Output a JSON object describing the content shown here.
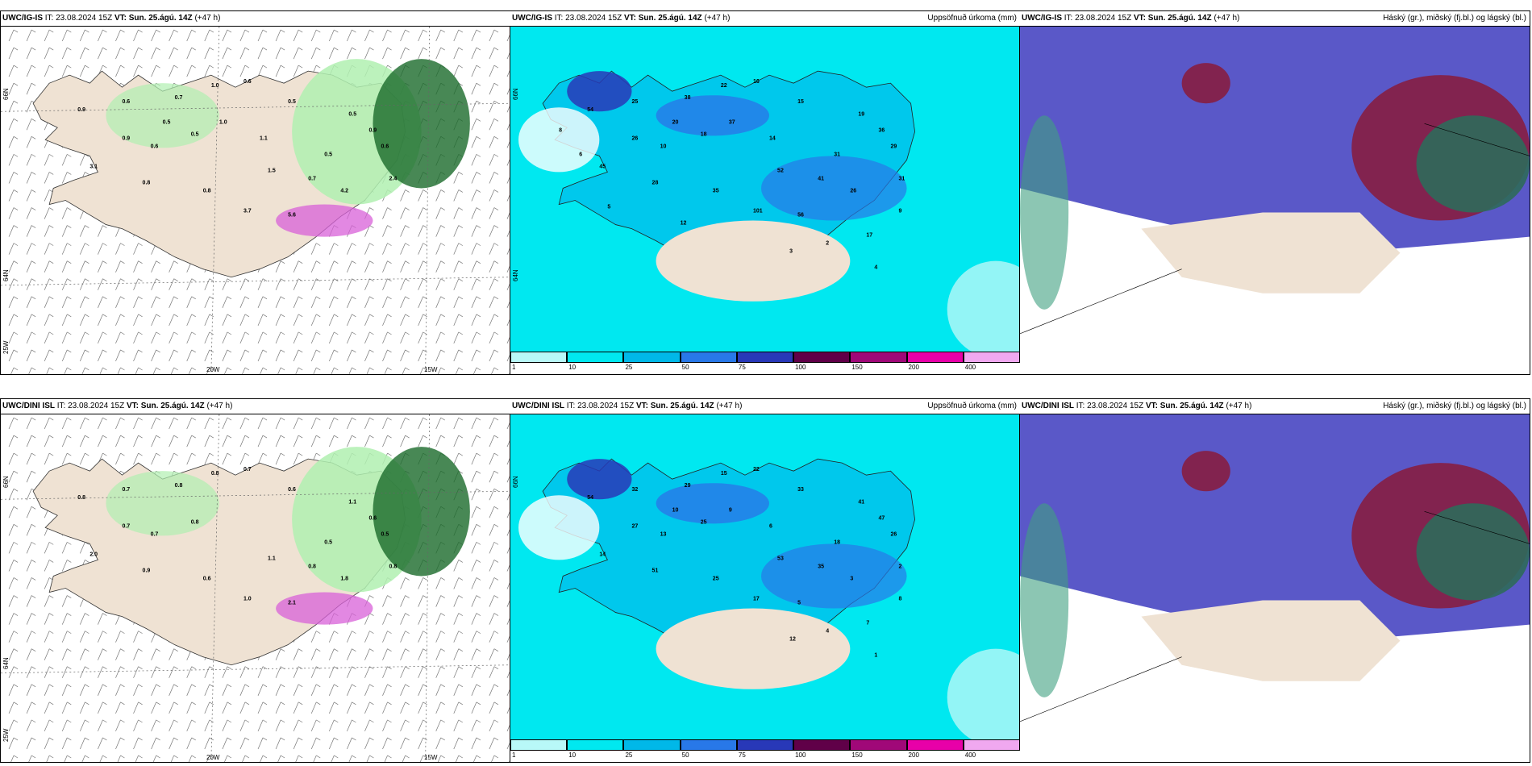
{
  "panels": [
    {
      "id": "top-left",
      "model": "UWC/IG-IS",
      "init": "IT: 23.08.2024 15Z",
      "valid_label": "VT:",
      "valid": "Sun. 25.ágú. 14Z",
      "lead": "(+47 h)",
      "right_title": "",
      "axis_labels": {
        "lon1": "20W",
        "lon2": "15W",
        "lat1": "66N",
        "lat2": "64N",
        "lat3": "25W"
      },
      "values": [
        "0.9",
        "0.6",
        "0.7",
        "0.5",
        "0.9",
        "0.6",
        "1.0",
        "0.6",
        "0.5",
        "0.5",
        "0.9",
        "0.5",
        "0.6",
        "1.5",
        "0.7",
        "0.8",
        "0.8",
        "3.1",
        "3.7",
        "5.6",
        "4.2",
        "2.4",
        "1.0",
        "0.5",
        "1.1"
      ]
    },
    {
      "id": "top-mid",
      "model": "UWC/IG-IS",
      "init": "IT: 23.08.2024 15Z",
      "valid_label": "VT:",
      "valid": "Sun. 25.ágú. 14Z",
      "lead": "(+47 h)",
      "right_title": "Uppsöfnuð úrkoma (mm)",
      "axis_labels": {
        "lat1": "66N",
        "lat2": "64N"
      },
      "values": [
        "54",
        "25",
        "38",
        "18",
        "26",
        "10",
        "22",
        "16",
        "15",
        "19",
        "36",
        "31",
        "29",
        "52",
        "41",
        "35",
        "28",
        "45",
        "101",
        "56",
        "26",
        "31",
        "37",
        "20",
        "14",
        "17",
        "2",
        "3",
        "4",
        "9",
        "5",
        "6",
        "8",
        "12"
      ]
    },
    {
      "id": "top-right",
      "model": "UWC/IG-IS",
      "init": "IT: 23.08.2024 15Z",
      "valid_label": "VT:",
      "valid": "Sun. 25.ágú. 14Z",
      "lead": "(+47 h)",
      "right_title": "Háský (gr.), miðský (fj.bl.) og lágský (bl.)",
      "axis_labels": {},
      "values": []
    },
    {
      "id": "bot-left",
      "model": "UWC/DINI ISL",
      "init": "IT: 23.08.2024 15Z",
      "valid_label": "VT:",
      "valid": "Sun. 25.ágú. 14Z",
      "lead": "(+47 h)",
      "right_title": "",
      "axis_labels": {
        "lon1": "20W",
        "lon2": "15W",
        "lat1": "66N",
        "lat2": "64N",
        "lat3": "25W"
      },
      "values": [
        "0.8",
        "0.7",
        "0.8",
        "0.8",
        "0.7",
        "0.7",
        "0.8",
        "0.7",
        "0.6",
        "1.1",
        "0.6",
        "0.5",
        "0.5",
        "1.1",
        "0.8",
        "0.6",
        "0.9",
        "2.0",
        "1.0",
        "2.1",
        "1.8",
        "0.8"
      ]
    },
    {
      "id": "bot-mid",
      "model": "UWC/DINI ISL",
      "init": "IT: 23.08.2024 15Z",
      "valid_label": "VT:",
      "valid": "Sun. 25.ágú. 14Z",
      "lead": "(+47 h)",
      "right_title": "Uppsöfnuð úrkoma (mm)",
      "axis_labels": {
        "lat1": "66N"
      },
      "values": [
        "54",
        "32",
        "29",
        "25",
        "27",
        "13",
        "15",
        "22",
        "33",
        "41",
        "47",
        "18",
        "26",
        "53",
        "35",
        "25",
        "51",
        "14",
        "17",
        "5",
        "3",
        "2",
        "9",
        "10",
        "6",
        "7",
        "4",
        "12",
        "1",
        "8"
      ]
    },
    {
      "id": "bot-right",
      "model": "UWC/DINI ISL",
      "init": "IT: 23.08.2024 15Z",
      "valid_label": "VT:",
      "valid": "Sun. 25.ágú. 14Z",
      "lead": "(+47 h)",
      "right_title": "Háský (gr.), miðský (fj.bl.) og lágský (bl.)",
      "axis_labels": {},
      "values": []
    }
  ],
  "colorbar": {
    "ticks": [
      "1",
      "10",
      "25",
      "50",
      "75",
      "100",
      "150",
      "200",
      "400"
    ],
    "colors": [
      "#b8f8f8",
      "#00e8f0",
      "#00b8e8",
      "#2878e8",
      "#2838b8",
      "#600048",
      "#a00878",
      "#e800a8",
      "#f0a8f0"
    ]
  },
  "colors": {
    "land": "#efe2d3",
    "precip_light": "#b0f0b0",
    "precip_dark": "#1a6a2a",
    "precip_mid_bg": "#00e8f0",
    "cloud_mid": "#5a58c8",
    "cloud_high": "#8a1a3a",
    "cloud_low": "#2e6a5a"
  }
}
